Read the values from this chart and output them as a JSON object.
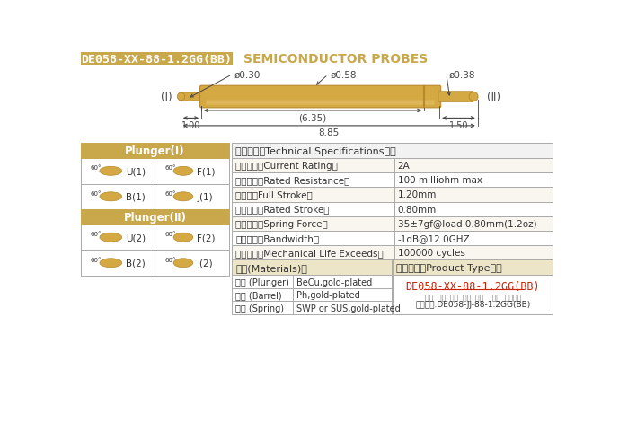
{
  "title_box_text": "DE058-XX-88-1.2GG(BB)",
  "title_box_color": "#C9A84C",
  "title_text": "SEMICONDUCTOR PROBES",
  "title_text_color": "#C9A84C",
  "bg_color": "#FFFFFF",
  "gold_color": "#C9A84C",
  "gold_mid": "#D4A843",
  "gold_dark": "#B8882A",
  "gold_light": "#E8C870",
  "dim_text_color": "#444444",
  "spec_title": "技术要求（Technical Specifications）：",
  "specs": [
    [
      "额定电流（Current Rating）",
      "2A"
    ],
    [
      "额定电阴（Rated Resistance）",
      "100 milliohm max"
    ],
    [
      "满行程（Full Stroke）",
      "1.20mm"
    ],
    [
      "额定行程（Rated Stroke）",
      "0.80mm"
    ],
    [
      "额定弹力（Spring Force）",
      "35±7gf@load 0.80mm(1.2oz)"
    ],
    [
      "频率带宽（Bandwidth）",
      "-1dB@12.0GHZ"
    ],
    [
      "测试寿命（Mechanical Life Exceeds）",
      "100000 cycles"
    ]
  ],
  "mat_title": "材质(Materials)：",
  "materials": [
    [
      "针头 (Plunger)",
      "BeCu,gold-plated"
    ],
    [
      "针管 (Barrel)",
      "Ph,gold-plated"
    ],
    [
      "弹簧 (Spring)",
      "SWP or SUS,gold-plated"
    ]
  ],
  "prod_title": "成品型号（Product Type）：",
  "prod_type": "DE058-XX-88-1.2GG(BB)",
  "prod_labels": "系列  规格  头型  行长  弹力    镜金  针头材质",
  "prod_example": "订购举例:DE058-JJ-88-1.2GG(BB)",
  "plunger1_title": "Plunger(Ⅰ)",
  "plunger2_title": "Plunger(Ⅱ)",
  "dim_d030": "ø0.30",
  "dim_d058": "ø0.58",
  "dim_d038": "ø0.38",
  "dim_635": "(6.35)",
  "dim_100": "1.00",
  "dim_150": "1.50",
  "dim_885": "8.85",
  "label_I": "(Ⅰ)",
  "label_II": "(Ⅱ)"
}
